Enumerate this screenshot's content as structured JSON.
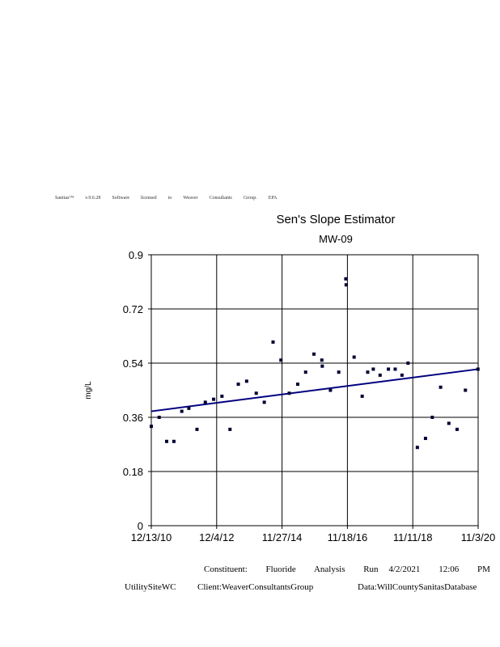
{
  "license_line": [
    "Sanitas™",
    "v.9.6.28",
    "Software",
    "licensed",
    "to",
    "Weaver",
    "Consultants",
    "Group.",
    "EPA"
  ],
  "chart_data": {
    "type": "scatter",
    "title": "Sen's Slope Estimator",
    "subtitle": "MW-09",
    "xlabel": "",
    "ylabel": "mg/L",
    "ylim": [
      0,
      0.9
    ],
    "yticks": [
      "0",
      "0.18",
      "0.36",
      "0.54",
      "0.72",
      "0.9"
    ],
    "xlim": [
      "2010-12-13",
      "2020-11-03"
    ],
    "xticks": [
      "12/13/10",
      "12/4/12",
      "11/27/14",
      "11/18/16",
      "11/11/18",
      "11/3/20"
    ],
    "grid": true,
    "point_color": "#000033",
    "trend_color": "#000080",
    "trend": {
      "start": [
        "2010-12-13",
        0.38
      ],
      "end": [
        "2020-11-03",
        0.52
      ]
    },
    "points": [
      [
        "2010-12-13",
        0.33
      ],
      [
        "2011-03-10",
        0.36
      ],
      [
        "2011-06-01",
        0.28
      ],
      [
        "2011-08-20",
        0.28
      ],
      [
        "2011-11-15",
        0.38
      ],
      [
        "2012-02-01",
        0.39
      ],
      [
        "2012-05-01",
        0.32
      ],
      [
        "2012-08-01",
        0.41
      ],
      [
        "2012-11-01",
        0.42
      ],
      [
        "2013-02-01",
        0.43
      ],
      [
        "2013-05-01",
        0.32
      ],
      [
        "2013-08-01",
        0.47
      ],
      [
        "2013-11-01",
        0.48
      ],
      [
        "2014-02-15",
        0.44
      ],
      [
        "2014-05-15",
        0.41
      ],
      [
        "2014-08-20",
        0.61
      ],
      [
        "2014-11-15",
        0.55
      ],
      [
        "2015-02-15",
        0.44
      ],
      [
        "2015-05-20",
        0.47
      ],
      [
        "2015-08-15",
        0.51
      ],
      [
        "2015-11-15",
        0.57
      ],
      [
        "2016-02-10",
        0.55
      ],
      [
        "2016-02-15",
        0.53
      ],
      [
        "2016-05-15",
        0.45
      ],
      [
        "2016-08-15",
        0.51
      ],
      [
        "2016-11-01",
        0.82
      ],
      [
        "2016-11-05",
        0.8
      ],
      [
        "2017-02-01",
        0.56
      ],
      [
        "2017-05-01",
        0.43
      ],
      [
        "2017-07-01",
        0.51
      ],
      [
        "2017-09-01",
        0.52
      ],
      [
        "2017-11-15",
        0.5
      ],
      [
        "2018-02-15",
        0.52
      ],
      [
        "2018-05-01",
        0.52
      ],
      [
        "2018-07-15",
        0.5
      ],
      [
        "2018-09-20",
        0.54
      ],
      [
        "2019-01-01",
        0.26
      ],
      [
        "2019-04-01",
        0.29
      ],
      [
        "2019-06-15",
        0.36
      ],
      [
        "2019-09-15",
        0.46
      ],
      [
        "2019-12-15",
        0.34
      ],
      [
        "2020-03-15",
        0.32
      ],
      [
        "2020-06-15",
        0.45
      ],
      [
        "2020-11-01",
        0.52
      ]
    ]
  },
  "footer": {
    "constituent_label": "Constituent:",
    "constituent": "Fluoride",
    "analysis": "Analysis",
    "run": "Run",
    "date": "4/2/2021",
    "time": "12:06",
    "ampm": "PM",
    "site": "UtilitySiteWC",
    "client": "Client:WeaverConsultantsGroup",
    "data": "Data:WillCountySanitasDatabase"
  }
}
